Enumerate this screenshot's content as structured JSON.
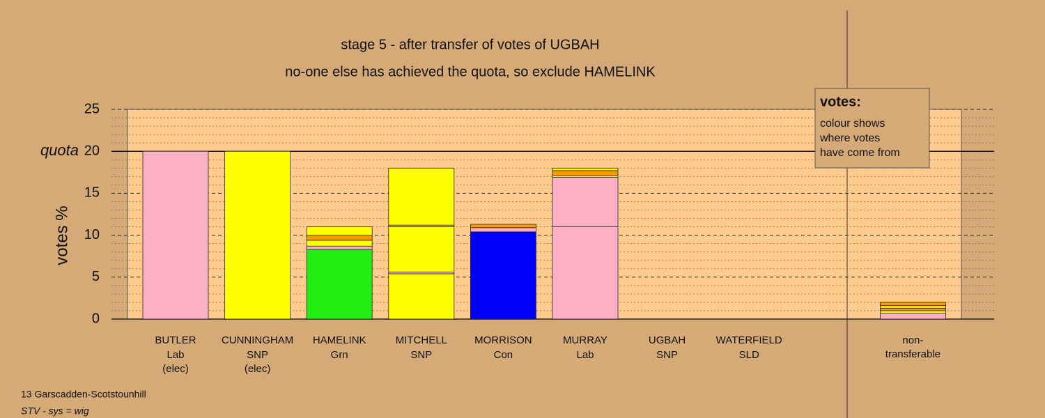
{
  "chart_data": {
    "type": "stacked-bar",
    "title": "stage 5 - after transfer of votes of UGBAH",
    "subtitle": "no-one else has achieved the quota, so exclude HAMELINK",
    "ylabel": "votes %",
    "quota": 20,
    "quota_label": "quota",
    "categories": [
      "BUTLER",
      "CUNNINGHAM",
      "HAMELINK",
      "MITCHELL",
      "MORRISON",
      "MURRAY",
      "UGBAH",
      "WATERFIELD",
      "non-transferable"
    ],
    "parties": [
      "Lab",
      "SNP",
      "Grn",
      "SNP",
      "Con",
      "Lab",
      "SNP",
      "SLD",
      null
    ],
    "notes": [
      "(elec)",
      "(elec)",
      null,
      null,
      null,
      null,
      null,
      null,
      null
    ],
    "stacks": [
      [
        {
          "value": 20,
          "color": "#fcb0c6"
        }
      ],
      [
        {
          "value": 20,
          "color": "#ffff00"
        }
      ],
      [
        {
          "value": 8.3,
          "color": "#22ee11"
        },
        {
          "value": 0.4,
          "color": "#fcb0c6"
        },
        {
          "value": 0.7,
          "color": "#ffff00"
        },
        {
          "value": 0.6,
          "color": "#ff9900"
        },
        {
          "value": 1.0,
          "color": "#ffff00"
        }
      ],
      [
        {
          "value": 5.4,
          "color": "#ffff00"
        },
        {
          "value": 0.2,
          "color": "#fcb0c6"
        },
        {
          "value": 5.4,
          "color": "#ffff00"
        },
        {
          "value": 0.2,
          "color": "#fcb0c6"
        },
        {
          "value": 6.8,
          "color": "#ffff00"
        }
      ],
      [
        {
          "value": 10.4,
          "color": "#0000ff"
        },
        {
          "value": 0.5,
          "color": "#fcb0c6"
        },
        {
          "value": 0.4,
          "color": "#ff9900"
        }
      ],
      [
        {
          "value": 11.0,
          "color": "#fcb0c6"
        },
        {
          "value": 5.9,
          "color": "#fcb0c6"
        },
        {
          "value": 0.2,
          "color": "#ffff00"
        },
        {
          "value": 0.6,
          "color": "#ff9900"
        },
        {
          "value": 0.3,
          "color": "#ffff00"
        }
      ],
      [
        {
          "value": 0,
          "color": "#ffff00"
        }
      ],
      [
        {
          "value": 0,
          "color": "#ff9900"
        }
      ],
      [
        {
          "value": 0.7,
          "color": "#fcb0c6"
        },
        {
          "value": 0.3,
          "color": "#ffff00"
        },
        {
          "value": 0.3,
          "color": "#ff9900"
        },
        {
          "value": 0.3,
          "color": "#ffff00"
        },
        {
          "value": 0.4,
          "color": "#ff9900"
        }
      ]
    ],
    "ylim": [
      0,
      25
    ],
    "yticks": [
      0,
      5,
      10,
      15,
      20,
      25
    ],
    "minor_yticks": [
      1,
      2,
      3,
      4,
      6,
      7,
      8,
      9,
      11,
      12,
      13,
      14,
      16,
      17,
      18,
      19,
      21,
      22,
      23,
      24
    ],
    "legend": {
      "title": "votes:",
      "lines": [
        "colour shows",
        "where votes",
        "have come from"
      ]
    },
    "footer": [
      "13 Garscadden-Scotstounhill",
      "STV - sys = wig"
    ]
  }
}
